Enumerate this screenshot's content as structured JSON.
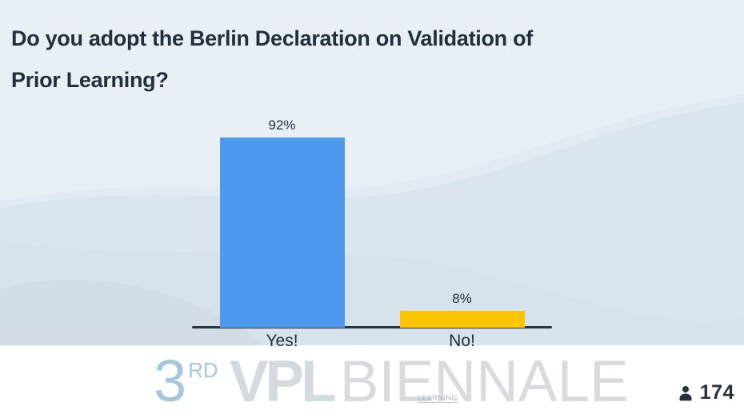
{
  "question": {
    "full": "Do you adopt the Berlin Declaration on Validation of Prior Learning?",
    "lines": [
      "Do you adopt the Berlin Declaration on Validation of",
      "Prior Learning?"
    ]
  },
  "chart_data": {
    "type": "bar",
    "title": "Do you adopt the Berlin Declaration on Validation of Prior Learning?",
    "categories": [
      "Yes!",
      "No!"
    ],
    "values": [
      92,
      8
    ],
    "value_labels": [
      "92%",
      "8%"
    ],
    "unit": "percent",
    "bar_colors": [
      "#4C99EE",
      "#FDC500"
    ],
    "ylim": [
      0,
      100
    ],
    "grid": false,
    "legend": "none",
    "value_label_position": "above-bar"
  },
  "participants": {
    "count": "174"
  },
  "watermark": {
    "edition": "3",
    "edition_suffix": "RD",
    "brand_main": "VPL",
    "brand_texture_word": "LEARNING",
    "brand_rest": "BIENNALE"
  },
  "colors": {
    "question_text": "#232F3D",
    "bar_yes": "#4C99EE",
    "bar_no": "#FDC500",
    "axis_line": "#2A3440",
    "label_text": "#232F3D",
    "background_base": "#E2EBF3",
    "footer_band": "#FFFFFF",
    "watermark_blue": "#A6C8DE",
    "watermark_gray": "#D6DBDE",
    "participant_text": "#26313D"
  },
  "icons": {
    "person": "person-icon"
  }
}
